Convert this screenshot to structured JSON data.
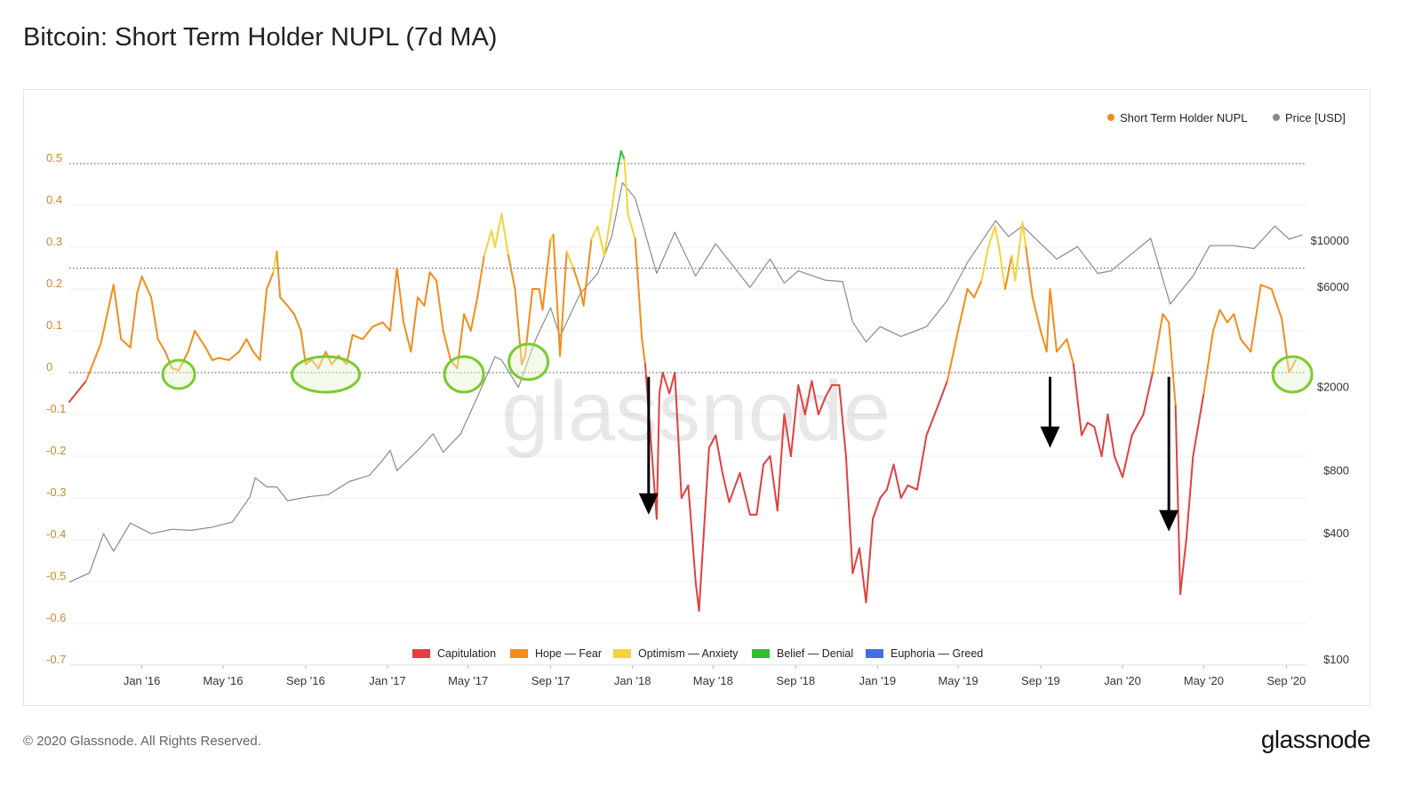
{
  "page": {
    "title": "Bitcoin: Short Term Holder NUPL (7d MA)",
    "copyright": "© 2020 Glassnode. All Rights Reserved.",
    "brand": "glassnode",
    "watermark": "glassnode"
  },
  "chart_data": {
    "type": "line",
    "title": "Bitcoin: Short Term Holder NUPL (7d MA)",
    "x_ticks": [
      "Jan '16",
      "May '16",
      "Sep '16",
      "Jan '17",
      "May '17",
      "Sep '17",
      "Jan '18",
      "May '18",
      "Sep '18",
      "Jan '19",
      "May '19",
      "Sep '19",
      "Jan '20",
      "May '20",
      "Sep '20"
    ],
    "x_range": [
      "2015-09-15",
      "2020-10-01"
    ],
    "y_left": {
      "ticks": [
        "0.5",
        "0.4",
        "0.3",
        "0.2",
        "0.1",
        "0",
        "-0.1",
        "-0.2",
        "-0.3",
        "-0.4",
        "-0.5",
        "-0.6",
        "-0.7"
      ],
      "range": [
        -0.7,
        0.5
      ]
    },
    "y_right": {
      "scale": "log",
      "ticks": [
        "$10000",
        "$6000",
        "$2000",
        "$800",
        "$400",
        "$100"
      ],
      "values": [
        10000,
        6000,
        2000,
        800,
        400,
        100
      ]
    },
    "reference_lines": [
      0.5,
      0.25,
      0
    ],
    "legend_top": [
      {
        "label": "Short Term Holder NUPL",
        "color": "#f28c1c"
      },
      {
        "label": "Price [USD]",
        "color": "#888888"
      }
    ],
    "legend_bottom": [
      {
        "label": "Capitulation",
        "color": "#e04040"
      },
      {
        "label": "Hope — Fear",
        "color": "#f28c1c"
      },
      {
        "label": "Optimism — Anxiety",
        "color": "#f2d43a"
      },
      {
        "label": "Belief — Denial",
        "color": "#2fbf2f"
      },
      {
        "label": "Euphoria — Greed",
        "color": "#3f6fe0"
      }
    ],
    "zone_colors": {
      "capitulation": "#e04040",
      "hope": "#f28c1c",
      "optimism": "#f2d43a",
      "belief": "#2fbf2f",
      "euphoria": "#3f6fe0"
    },
    "series": [
      {
        "name": "Short Term Holder NUPL",
        "points": [
          [
            "2015-09-15",
            -0.07
          ],
          [
            "2015-10-10",
            -0.02
          ],
          [
            "2015-11-01",
            0.07
          ],
          [
            "2015-11-20",
            0.21
          ],
          [
            "2015-12-01",
            0.08
          ],
          [
            "2015-12-15",
            0.06
          ],
          [
            "2015-12-25",
            0.19
          ],
          [
            "2016-01-01",
            0.23
          ],
          [
            "2016-01-15",
            0.18
          ],
          [
            "2016-01-25",
            0.08
          ],
          [
            "2016-02-05",
            0.05
          ],
          [
            "2016-02-15",
            0.01
          ],
          [
            "2016-02-25",
            0.005
          ],
          [
            "2016-03-10",
            0.05
          ],
          [
            "2016-03-20",
            0.1
          ],
          [
            "2016-04-05",
            0.06
          ],
          [
            "2016-04-15",
            0.03
          ],
          [
            "2016-04-25",
            0.035
          ],
          [
            "2016-05-10",
            0.03
          ],
          [
            "2016-05-25",
            0.05
          ],
          [
            "2016-06-05",
            0.08
          ],
          [
            "2016-06-15",
            0.05
          ],
          [
            "2016-06-25",
            0.03
          ],
          [
            "2016-07-05",
            0.2
          ],
          [
            "2016-07-15",
            0.24
          ],
          [
            "2016-07-20",
            0.29
          ],
          [
            "2016-07-25",
            0.18
          ],
          [
            "2016-08-05",
            0.16
          ],
          [
            "2016-08-15",
            0.14
          ],
          [
            "2016-08-25",
            0.1
          ],
          [
            "2016-09-01",
            0.02
          ],
          [
            "2016-09-10",
            0.03
          ],
          [
            "2016-09-20",
            0.01
          ],
          [
            "2016-10-01",
            0.05
          ],
          [
            "2016-10-10",
            0.02
          ],
          [
            "2016-10-20",
            0.04
          ],
          [
            "2016-11-01",
            0.02
          ],
          [
            "2016-11-10",
            0.09
          ],
          [
            "2016-11-25",
            0.08
          ],
          [
            "2016-12-10",
            0.11
          ],
          [
            "2016-12-25",
            0.12
          ],
          [
            "2017-01-05",
            0.1
          ],
          [
            "2017-01-15",
            0.25
          ],
          [
            "2017-01-25",
            0.12
          ],
          [
            "2017-02-05",
            0.05
          ],
          [
            "2017-02-15",
            0.18
          ],
          [
            "2017-02-25",
            0.16
          ],
          [
            "2017-03-05",
            0.24
          ],
          [
            "2017-03-15",
            0.22
          ],
          [
            "2017-03-25",
            0.1
          ],
          [
            "2017-04-05",
            0.03
          ],
          [
            "2017-04-15",
            0.01
          ],
          [
            "2017-04-25",
            0.14
          ],
          [
            "2017-05-05",
            0.1
          ],
          [
            "2017-05-15",
            0.18
          ],
          [
            "2017-05-25",
            0.28
          ],
          [
            "2017-06-05",
            0.34
          ],
          [
            "2017-06-10",
            0.3
          ],
          [
            "2017-06-20",
            0.38
          ],
          [
            "2017-06-30",
            0.28
          ],
          [
            "2017-07-10",
            0.2
          ],
          [
            "2017-07-20",
            0.02
          ],
          [
            "2017-07-25",
            0.04
          ],
          [
            "2017-08-05",
            0.2
          ],
          [
            "2017-08-15",
            0.2
          ],
          [
            "2017-08-20",
            0.15
          ],
          [
            "2017-09-01",
            0.32
          ],
          [
            "2017-09-05",
            0.33
          ],
          [
            "2017-09-15",
            0.04
          ],
          [
            "2017-09-25",
            0.29
          ],
          [
            "2017-10-05",
            0.25
          ],
          [
            "2017-10-15",
            0.2
          ],
          [
            "2017-10-20",
            0.16
          ],
          [
            "2017-11-01",
            0.32
          ],
          [
            "2017-11-10",
            0.35
          ],
          [
            "2017-11-20",
            0.28
          ],
          [
            "2017-12-01",
            0.39
          ],
          [
            "2017-12-08",
            0.47
          ],
          [
            "2017-12-15",
            0.53
          ],
          [
            "2017-12-20",
            0.51
          ],
          [
            "2017-12-25",
            0.38
          ],
          [
            "2018-01-05",
            0.32
          ],
          [
            "2018-01-15",
            0.08
          ],
          [
            "2018-01-20",
            0.02
          ],
          [
            "2018-02-06",
            -0.35
          ],
          [
            "2018-02-10",
            -0.05
          ],
          [
            "2018-02-15",
            0.0
          ],
          [
            "2018-02-25",
            -0.05
          ],
          [
            "2018-03-05",
            0.0
          ],
          [
            "2018-03-15",
            -0.3
          ],
          [
            "2018-03-25",
            -0.27
          ],
          [
            "2018-04-05",
            -0.5
          ],
          [
            "2018-04-10",
            -0.57
          ],
          [
            "2018-04-25",
            -0.18
          ],
          [
            "2018-05-05",
            -0.15
          ],
          [
            "2018-05-15",
            -0.24
          ],
          [
            "2018-05-25",
            -0.31
          ],
          [
            "2018-06-10",
            -0.24
          ],
          [
            "2018-06-25",
            -0.34
          ],
          [
            "2018-07-05",
            -0.34
          ],
          [
            "2018-07-15",
            -0.22
          ],
          [
            "2018-07-25",
            -0.2
          ],
          [
            "2018-08-05",
            -0.33
          ],
          [
            "2018-08-15",
            -0.1
          ],
          [
            "2018-08-25",
            -0.2
          ],
          [
            "2018-09-05",
            -0.03
          ],
          [
            "2018-09-15",
            -0.1
          ],
          [
            "2018-09-25",
            -0.02
          ],
          [
            "2018-10-05",
            -0.1
          ],
          [
            "2018-10-15",
            -0.06
          ],
          [
            "2018-10-25",
            -0.03
          ],
          [
            "2018-11-05",
            -0.03
          ],
          [
            "2018-11-15",
            -0.2
          ],
          [
            "2018-11-25",
            -0.48
          ],
          [
            "2018-12-05",
            -0.42
          ],
          [
            "2018-12-15",
            -0.55
          ],
          [
            "2018-12-25",
            -0.35
          ],
          [
            "2019-01-05",
            -0.3
          ],
          [
            "2019-01-15",
            -0.28
          ],
          [
            "2019-01-25",
            -0.22
          ],
          [
            "2019-02-05",
            -0.3
          ],
          [
            "2019-02-15",
            -0.27
          ],
          [
            "2019-03-01",
            -0.28
          ],
          [
            "2019-03-15",
            -0.15
          ],
          [
            "2019-04-01",
            -0.08
          ],
          [
            "2019-04-15",
            -0.02
          ],
          [
            "2019-05-01",
            0.1
          ],
          [
            "2019-05-15",
            0.2
          ],
          [
            "2019-05-25",
            0.18
          ],
          [
            "2019-06-05",
            0.22
          ],
          [
            "2019-06-15",
            0.3
          ],
          [
            "2019-06-25",
            0.35
          ],
          [
            "2019-07-01",
            0.3
          ],
          [
            "2019-07-10",
            0.2
          ],
          [
            "2019-07-20",
            0.28
          ],
          [
            "2019-07-25",
            0.22
          ],
          [
            "2019-08-05",
            0.36
          ],
          [
            "2019-08-10",
            0.3
          ],
          [
            "2019-08-20",
            0.18
          ],
          [
            "2019-09-01",
            0.1
          ],
          [
            "2019-09-10",
            0.05
          ],
          [
            "2019-09-15",
            0.2
          ],
          [
            "2019-09-25",
            0.05
          ],
          [
            "2019-10-10",
            0.08
          ],
          [
            "2019-10-20",
            0.02
          ],
          [
            "2019-11-01",
            -0.15
          ],
          [
            "2019-11-10",
            -0.12
          ],
          [
            "2019-11-20",
            -0.13
          ],
          [
            "2019-12-01",
            -0.2
          ],
          [
            "2019-12-10",
            -0.1
          ],
          [
            "2019-12-20",
            -0.2
          ],
          [
            "2020-01-01",
            -0.25
          ],
          [
            "2020-01-15",
            -0.15
          ],
          [
            "2020-02-01",
            -0.1
          ],
          [
            "2020-02-15",
            0.0
          ],
          [
            "2020-03-01",
            0.14
          ],
          [
            "2020-03-10",
            0.12
          ],
          [
            "2020-03-20",
            -0.08
          ],
          [
            "2020-03-27",
            -0.53
          ],
          [
            "2020-04-05",
            -0.4
          ],
          [
            "2020-04-15",
            -0.2
          ],
          [
            "2020-05-01",
            -0.05
          ],
          [
            "2020-05-15",
            0.1
          ],
          [
            "2020-05-25",
            0.15
          ],
          [
            "2020-06-05",
            0.12
          ],
          [
            "2020-06-15",
            0.14
          ],
          [
            "2020-06-25",
            0.08
          ],
          [
            "2020-07-10",
            0.05
          ],
          [
            "2020-07-25",
            0.21
          ],
          [
            "2020-08-10",
            0.2
          ],
          [
            "2020-08-25",
            0.13
          ],
          [
            "2020-09-05",
            0.0
          ],
          [
            "2020-09-15",
            0.03
          ]
        ]
      },
      {
        "name": "Price [USD]",
        "points": [
          [
            "2015-09-15",
            235
          ],
          [
            "2015-10-15",
            260
          ],
          [
            "2015-11-05",
            400
          ],
          [
            "2015-11-20",
            330
          ],
          [
            "2015-12-15",
            450
          ],
          [
            "2016-01-15",
            400
          ],
          [
            "2016-02-15",
            420
          ],
          [
            "2016-03-15",
            415
          ],
          [
            "2016-04-15",
            430
          ],
          [
            "2016-05-15",
            455
          ],
          [
            "2016-06-10",
            600
          ],
          [
            "2016-06-18",
            740
          ],
          [
            "2016-07-05",
            670
          ],
          [
            "2016-07-20",
            670
          ],
          [
            "2016-08-05",
            575
          ],
          [
            "2016-09-05",
            600
          ],
          [
            "2016-10-05",
            615
          ],
          [
            "2016-11-05",
            710
          ],
          [
            "2016-12-05",
            760
          ],
          [
            "2016-12-25",
            900
          ],
          [
            "2017-01-05",
            1000
          ],
          [
            "2017-01-15",
            800
          ],
          [
            "2017-02-15",
            1000
          ],
          [
            "2017-03-10",
            1200
          ],
          [
            "2017-03-25",
            980
          ],
          [
            "2017-04-20",
            1200
          ],
          [
            "2017-05-15",
            1800
          ],
          [
            "2017-06-10",
            2800
          ],
          [
            "2017-06-20",
            2700
          ],
          [
            "2017-07-15",
            2000
          ],
          [
            "2017-08-10",
            3400
          ],
          [
            "2017-09-01",
            4800
          ],
          [
            "2017-09-15",
            3500
          ],
          [
            "2017-10-15",
            5600
          ],
          [
            "2017-11-10",
            7000
          ],
          [
            "2017-12-01",
            10500
          ],
          [
            "2017-12-17",
            19000
          ],
          [
            "2018-01-05",
            16000
          ],
          [
            "2018-02-06",
            7000
          ],
          [
            "2018-03-05",
            11000
          ],
          [
            "2018-04-05",
            6800
          ],
          [
            "2018-05-05",
            9700
          ],
          [
            "2018-06-25",
            6000
          ],
          [
            "2018-07-25",
            8200
          ],
          [
            "2018-08-15",
            6300
          ],
          [
            "2018-09-05",
            7200
          ],
          [
            "2018-10-15",
            6500
          ],
          [
            "2018-11-10",
            6400
          ],
          [
            "2018-11-25",
            4100
          ],
          [
            "2018-12-15",
            3300
          ],
          [
            "2019-01-05",
            3900
          ],
          [
            "2019-02-05",
            3500
          ],
          [
            "2019-03-15",
            3900
          ],
          [
            "2019-04-15",
            5200
          ],
          [
            "2019-05-15",
            7900
          ],
          [
            "2019-06-26",
            12500
          ],
          [
            "2019-07-15",
            10500
          ],
          [
            "2019-08-05",
            11800
          ],
          [
            "2019-09-25",
            8200
          ],
          [
            "2019-10-26",
            9400
          ],
          [
            "2019-11-25",
            7000
          ],
          [
            "2019-12-15",
            7200
          ],
          [
            "2020-01-15",
            8700
          ],
          [
            "2020-02-12",
            10300
          ],
          [
            "2020-03-12",
            5000
          ],
          [
            "2020-04-15",
            6800
          ],
          [
            "2020-05-10",
            9500
          ],
          [
            "2020-06-15",
            9500
          ],
          [
            "2020-07-15",
            9200
          ],
          [
            "2020-08-15",
            11800
          ],
          [
            "2020-09-05",
            10200
          ],
          [
            "2020-09-25",
            10700
          ]
        ]
      }
    ],
    "annotations": {
      "circles": [
        {
          "date": "2016-02-25",
          "value": 0.0
        },
        {
          "date": "2016-10-01",
          "value": 0.0
        },
        {
          "date": "2017-04-25",
          "value": 0.0
        },
        {
          "date": "2017-07-30",
          "value": 0.03
        },
        {
          "date": "2020-09-10",
          "value": 0.0
        }
      ],
      "arrows": [
        {
          "date": "2018-01-25",
          "from": -0.01,
          "to": -0.34
        },
        {
          "date": "2019-09-15",
          "from": -0.01,
          "to": -0.18
        },
        {
          "date": "2020-03-10",
          "from": -0.01,
          "to": -0.38
        }
      ]
    }
  }
}
